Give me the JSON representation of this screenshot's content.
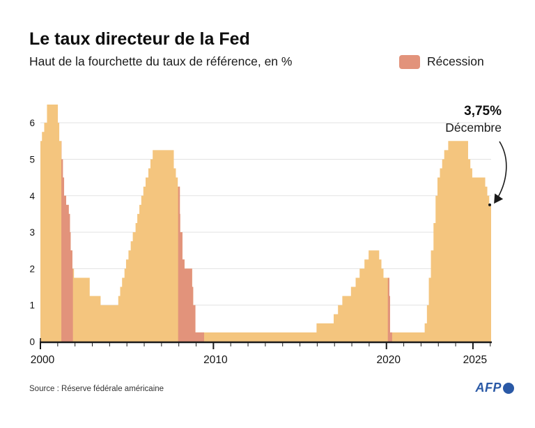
{
  "header": {
    "title": "Le taux directeur de la Fed",
    "subtitle": "Haut de la fourchette du taux de référence, en %"
  },
  "legend": {
    "label": "Récession"
  },
  "annotation": {
    "value": "3,75%",
    "sublabel": "Décembre"
  },
  "footer": {
    "source": "Source : Réserve fédérale américaine",
    "agency": "AFP"
  },
  "colors": {
    "area": "#F4C57E",
    "recession": "#E2937B",
    "grid": "#E2E2E2",
    "axis": "#1A1A1A",
    "text": "#111111",
    "afp_blue": "#2A59A6"
  },
  "chart_data": {
    "type": "area",
    "step": true,
    "title": "Le taux directeur de la Fed",
    "subtitle": "Haut de la fourchette du taux de référence, en %",
    "ylabel": "%",
    "xlim": [
      2000,
      2026.05
    ],
    "ylim": [
      0,
      6.5
    ],
    "y_ticks": [
      0,
      1,
      2,
      3,
      4,
      5,
      6
    ],
    "x_major_ticks": [
      2000,
      2010,
      2020,
      2025
    ],
    "x_tick_labels": [
      "2000",
      "2010",
      "2020",
      "2025"
    ],
    "x_minor_tick_every": 1,
    "grid": true,
    "legend_position": "top-right",
    "legend": [
      {
        "label": "Récession",
        "color": "#E2937B"
      }
    ],
    "series": [
      {
        "name": "Taux directeur de la Fed (haut de la fourchette, %)",
        "points": [
          [
            2000.0,
            5.5
          ],
          [
            2000.09,
            5.75
          ],
          [
            2000.22,
            6.0
          ],
          [
            2000.38,
            6.5
          ],
          [
            2001.01,
            6.0
          ],
          [
            2001.09,
            5.5
          ],
          [
            2001.22,
            5.0
          ],
          [
            2001.3,
            4.5
          ],
          [
            2001.37,
            4.0
          ],
          [
            2001.49,
            3.75
          ],
          [
            2001.64,
            3.5
          ],
          [
            2001.71,
            3.0
          ],
          [
            2001.75,
            2.5
          ],
          [
            2001.85,
            2.0
          ],
          [
            2001.94,
            1.75
          ],
          [
            2002.85,
            1.25
          ],
          [
            2003.48,
            1.0
          ],
          [
            2004.5,
            1.25
          ],
          [
            2004.61,
            1.5
          ],
          [
            2004.72,
            1.75
          ],
          [
            2004.86,
            2.0
          ],
          [
            2004.95,
            2.25
          ],
          [
            2005.09,
            2.5
          ],
          [
            2005.22,
            2.75
          ],
          [
            2005.34,
            3.0
          ],
          [
            2005.5,
            3.25
          ],
          [
            2005.6,
            3.5
          ],
          [
            2005.72,
            3.75
          ],
          [
            2005.83,
            4.0
          ],
          [
            2005.95,
            4.25
          ],
          [
            2006.08,
            4.5
          ],
          [
            2006.24,
            4.75
          ],
          [
            2006.36,
            5.0
          ],
          [
            2006.49,
            5.25
          ],
          [
            2007.71,
            4.75
          ],
          [
            2007.83,
            4.5
          ],
          [
            2007.94,
            4.25
          ],
          [
            2008.06,
            3.5
          ],
          [
            2008.08,
            3.0
          ],
          [
            2008.21,
            2.25
          ],
          [
            2008.33,
            2.0
          ],
          [
            2008.77,
            1.5
          ],
          [
            2008.83,
            1.0
          ],
          [
            2008.96,
            0.25
          ],
          [
            2015.96,
            0.5
          ],
          [
            2016.95,
            0.75
          ],
          [
            2017.2,
            1.0
          ],
          [
            2017.45,
            1.25
          ],
          [
            2017.95,
            1.5
          ],
          [
            2018.22,
            1.75
          ],
          [
            2018.45,
            2.0
          ],
          [
            2018.73,
            2.25
          ],
          [
            2018.97,
            2.5
          ],
          [
            2019.58,
            2.25
          ],
          [
            2019.71,
            2.0
          ],
          [
            2019.83,
            1.75
          ],
          [
            2020.17,
            1.25
          ],
          [
            2020.21,
            0.25
          ],
          [
            2022.21,
            0.5
          ],
          [
            2022.34,
            1.0
          ],
          [
            2022.45,
            1.75
          ],
          [
            2022.57,
            2.5
          ],
          [
            2022.72,
            3.25
          ],
          [
            2022.84,
            4.0
          ],
          [
            2022.95,
            4.5
          ],
          [
            2023.09,
            4.75
          ],
          [
            2023.22,
            5.0
          ],
          [
            2023.34,
            5.25
          ],
          [
            2023.57,
            5.5
          ],
          [
            2024.72,
            5.0
          ],
          [
            2024.85,
            4.75
          ],
          [
            2024.96,
            4.5
          ],
          [
            2025.71,
            4.25
          ],
          [
            2025.83,
            4.0
          ],
          [
            2025.94,
            3.75
          ]
        ]
      }
    ],
    "recessions": [
      [
        2001.21,
        2001.88
      ],
      [
        2007.96,
        2009.46
      ],
      [
        2020.08,
        2020.33
      ]
    ],
    "end_point": {
      "x": 2025.97,
      "y": 3.75,
      "value_label": "3,75%",
      "time_label": "Décembre"
    }
  }
}
